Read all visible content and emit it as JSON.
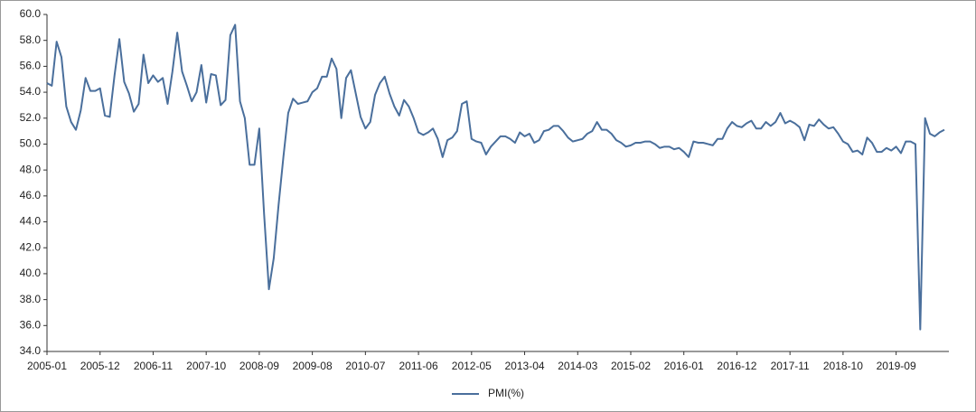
{
  "chart_data": {
    "type": "line",
    "categories": [
      "2005-01",
      null,
      null,
      null,
      null,
      null,
      null,
      null,
      null,
      null,
      null,
      "2005-12",
      null,
      null,
      null,
      null,
      null,
      null,
      null,
      null,
      null,
      null,
      "2006-11",
      null,
      null,
      null,
      null,
      null,
      null,
      null,
      null,
      null,
      null,
      "2007-10",
      null,
      null,
      null,
      null,
      null,
      null,
      null,
      null,
      null,
      null,
      "2008-09",
      null,
      null,
      null,
      null,
      null,
      null,
      null,
      null,
      null,
      null,
      "2009-08",
      null,
      null,
      null,
      null,
      null,
      null,
      null,
      null,
      null,
      null,
      "2010-07",
      null,
      null,
      null,
      null,
      null,
      null,
      null,
      null,
      null,
      null,
      "2011-06",
      null,
      null,
      null,
      null,
      null,
      null,
      null,
      null,
      null,
      null,
      "2012-05",
      null,
      null,
      null,
      null,
      null,
      null,
      null,
      null,
      null,
      null,
      "2013-04",
      null,
      null,
      null,
      null,
      null,
      null,
      null,
      null,
      null,
      null,
      "2014-03",
      null,
      null,
      null,
      null,
      null,
      null,
      null,
      null,
      null,
      null,
      "2015-02",
      null,
      null,
      null,
      null,
      null,
      null,
      null,
      null,
      null,
      null,
      "2016-01",
      null,
      null,
      null,
      null,
      null,
      null,
      null,
      null,
      null,
      null,
      "2016-12",
      null,
      null,
      null,
      null,
      null,
      null,
      null,
      null,
      null,
      null,
      "2017-11",
      null,
      null,
      null,
      null,
      null,
      null,
      null,
      null,
      null,
      null,
      "2018-10",
      null,
      null,
      null,
      null,
      null,
      null,
      null,
      null,
      null,
      null,
      "2019-09",
      null,
      null,
      null,
      null,
      null,
      null,
      null,
      null,
      null,
      null
    ],
    "series": [
      {
        "name": "PMI(%)",
        "color": "#4a6f9c",
        "values": [
          54.7,
          54.5,
          57.9,
          56.7,
          52.9,
          51.7,
          51.1,
          52.6,
          55.1,
          54.1,
          54.1,
          54.3,
          52.2,
          52.1,
          55.3,
          58.1,
          54.8,
          53.9,
          52.5,
          53.1,
          56.9,
          54.7,
          55.3,
          54.8,
          55.1,
          53.1,
          55.6,
          58.6,
          55.6,
          54.5,
          53.3,
          54.0,
          56.1,
          53.2,
          55.4,
          55.3,
          53.0,
          53.4,
          58.4,
          59.2,
          53.3,
          52.0,
          48.4,
          48.4,
          51.2,
          44.6,
          38.8,
          41.2,
          45.3,
          49.0,
          52.4,
          53.5,
          53.1,
          53.2,
          53.3,
          54.0,
          54.3,
          55.2,
          55.2,
          56.6,
          55.8,
          52.0,
          55.1,
          55.7,
          53.9,
          52.1,
          51.2,
          51.7,
          53.8,
          54.7,
          55.2,
          53.9,
          52.9,
          52.2,
          53.4,
          52.9,
          52.0,
          50.9,
          50.7,
          50.9,
          51.2,
          50.4,
          49.0,
          50.3,
          50.5,
          51.0,
          53.1,
          53.3,
          50.4,
          50.2,
          50.1,
          49.2,
          49.8,
          50.2,
          50.6,
          50.6,
          50.4,
          50.1,
          50.9,
          50.6,
          50.8,
          50.1,
          50.3,
          51.0,
          51.1,
          51.4,
          51.4,
          51.0,
          50.5,
          50.2,
          50.3,
          50.4,
          50.8,
          51.0,
          51.7,
          51.1,
          51.1,
          50.8,
          50.3,
          50.1,
          49.8,
          49.9,
          50.1,
          50.1,
          50.2,
          50.2,
          50.0,
          49.7,
          49.8,
          49.8,
          49.6,
          49.7,
          49.4,
          49.0,
          50.2,
          50.1,
          50.1,
          50.0,
          49.9,
          50.4,
          50.4,
          51.2,
          51.7,
          51.4,
          51.3,
          51.6,
          51.8,
          51.2,
          51.2,
          51.7,
          51.4,
          51.7,
          52.4,
          51.6,
          51.8,
          51.6,
          51.3,
          50.3,
          51.5,
          51.4,
          51.9,
          51.5,
          51.2,
          51.3,
          50.8,
          50.2,
          50.0,
          49.4,
          49.5,
          49.2,
          50.5,
          50.1,
          49.4,
          49.4,
          49.7,
          49.5,
          49.8,
          49.3,
          50.2,
          50.2,
          50.0,
          35.7,
          52.0,
          50.8,
          50.6,
          50.9,
          51.1
        ]
      }
    ],
    "ylim": [
      34,
      60
    ],
    "yticks": [
      {
        "value": 34,
        "label": "34.0"
      },
      {
        "value": 36,
        "label": "36.0"
      },
      {
        "value": 38,
        "label": "38.0"
      },
      {
        "value": 40,
        "label": "40.0"
      },
      {
        "value": 42,
        "label": "42.0"
      },
      {
        "value": 44,
        "label": "44.0"
      },
      {
        "value": 46,
        "label": "46.0"
      },
      {
        "value": 48,
        "label": "48.0"
      },
      {
        "value": 50,
        "label": "50.0"
      },
      {
        "value": 52,
        "label": "52.0"
      },
      {
        "value": 54,
        "label": "54.0"
      },
      {
        "value": 56,
        "label": "56.0"
      },
      {
        "value": 58,
        "label": "58.0"
      },
      {
        "value": 60,
        "label": "60.0"
      }
    ],
    "grid": false
  }
}
